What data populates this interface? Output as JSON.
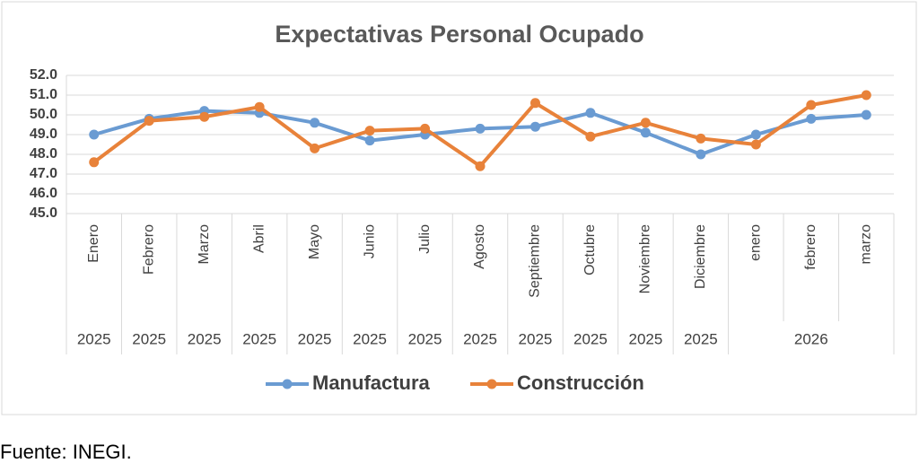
{
  "chart_data": {
    "type": "line",
    "title": "Expectativas Personal Ocupado",
    "categories": [
      "Enero",
      "Febrero",
      "Marzo",
      "Abril",
      "Mayo",
      "Junio",
      "Julio",
      "Agosto",
      "Septiembre",
      "Octubre",
      "Noviembre",
      "Diciembre",
      "enero",
      "febrero",
      "marzo"
    ],
    "years": [
      "2025",
      "2025",
      "2025",
      "2025",
      "2025",
      "2025",
      "2025",
      "2025",
      "2025",
      "2025",
      "2025",
      "2025",
      "2026",
      null,
      null
    ],
    "series": [
      {
        "name": "Manufactura",
        "color": "#6a9bd2",
        "values": [
          49.0,
          49.8,
          50.2,
          50.1,
          49.6,
          48.7,
          49.0,
          49.3,
          49.4,
          50.1,
          49.1,
          48.0,
          49.0,
          49.8,
          50.0
        ]
      },
      {
        "name": "Construcción",
        "color": "#e8823a",
        "values": [
          47.6,
          49.7,
          49.9,
          50.4,
          48.3,
          49.2,
          49.3,
          47.4,
          50.6,
          48.9,
          49.6,
          48.8,
          48.5,
          50.5,
          51.0
        ]
      }
    ],
    "ylim": [
      45,
      52
    ],
    "yticks": [
      {
        "value": 45,
        "label": "45.0"
      },
      {
        "value": 46,
        "label": "46.0"
      },
      {
        "value": 47,
        "label": "47.0"
      },
      {
        "value": 48,
        "label": "48.0"
      },
      {
        "value": 49,
        "label": "49.0"
      },
      {
        "value": 50,
        "label": "50.0"
      },
      {
        "value": 51,
        "label": "51.0"
      },
      {
        "value": 52,
        "label": "52.0"
      }
    ],
    "grid": true,
    "legend": "bottom",
    "source": "Fuente: INEGI."
  }
}
